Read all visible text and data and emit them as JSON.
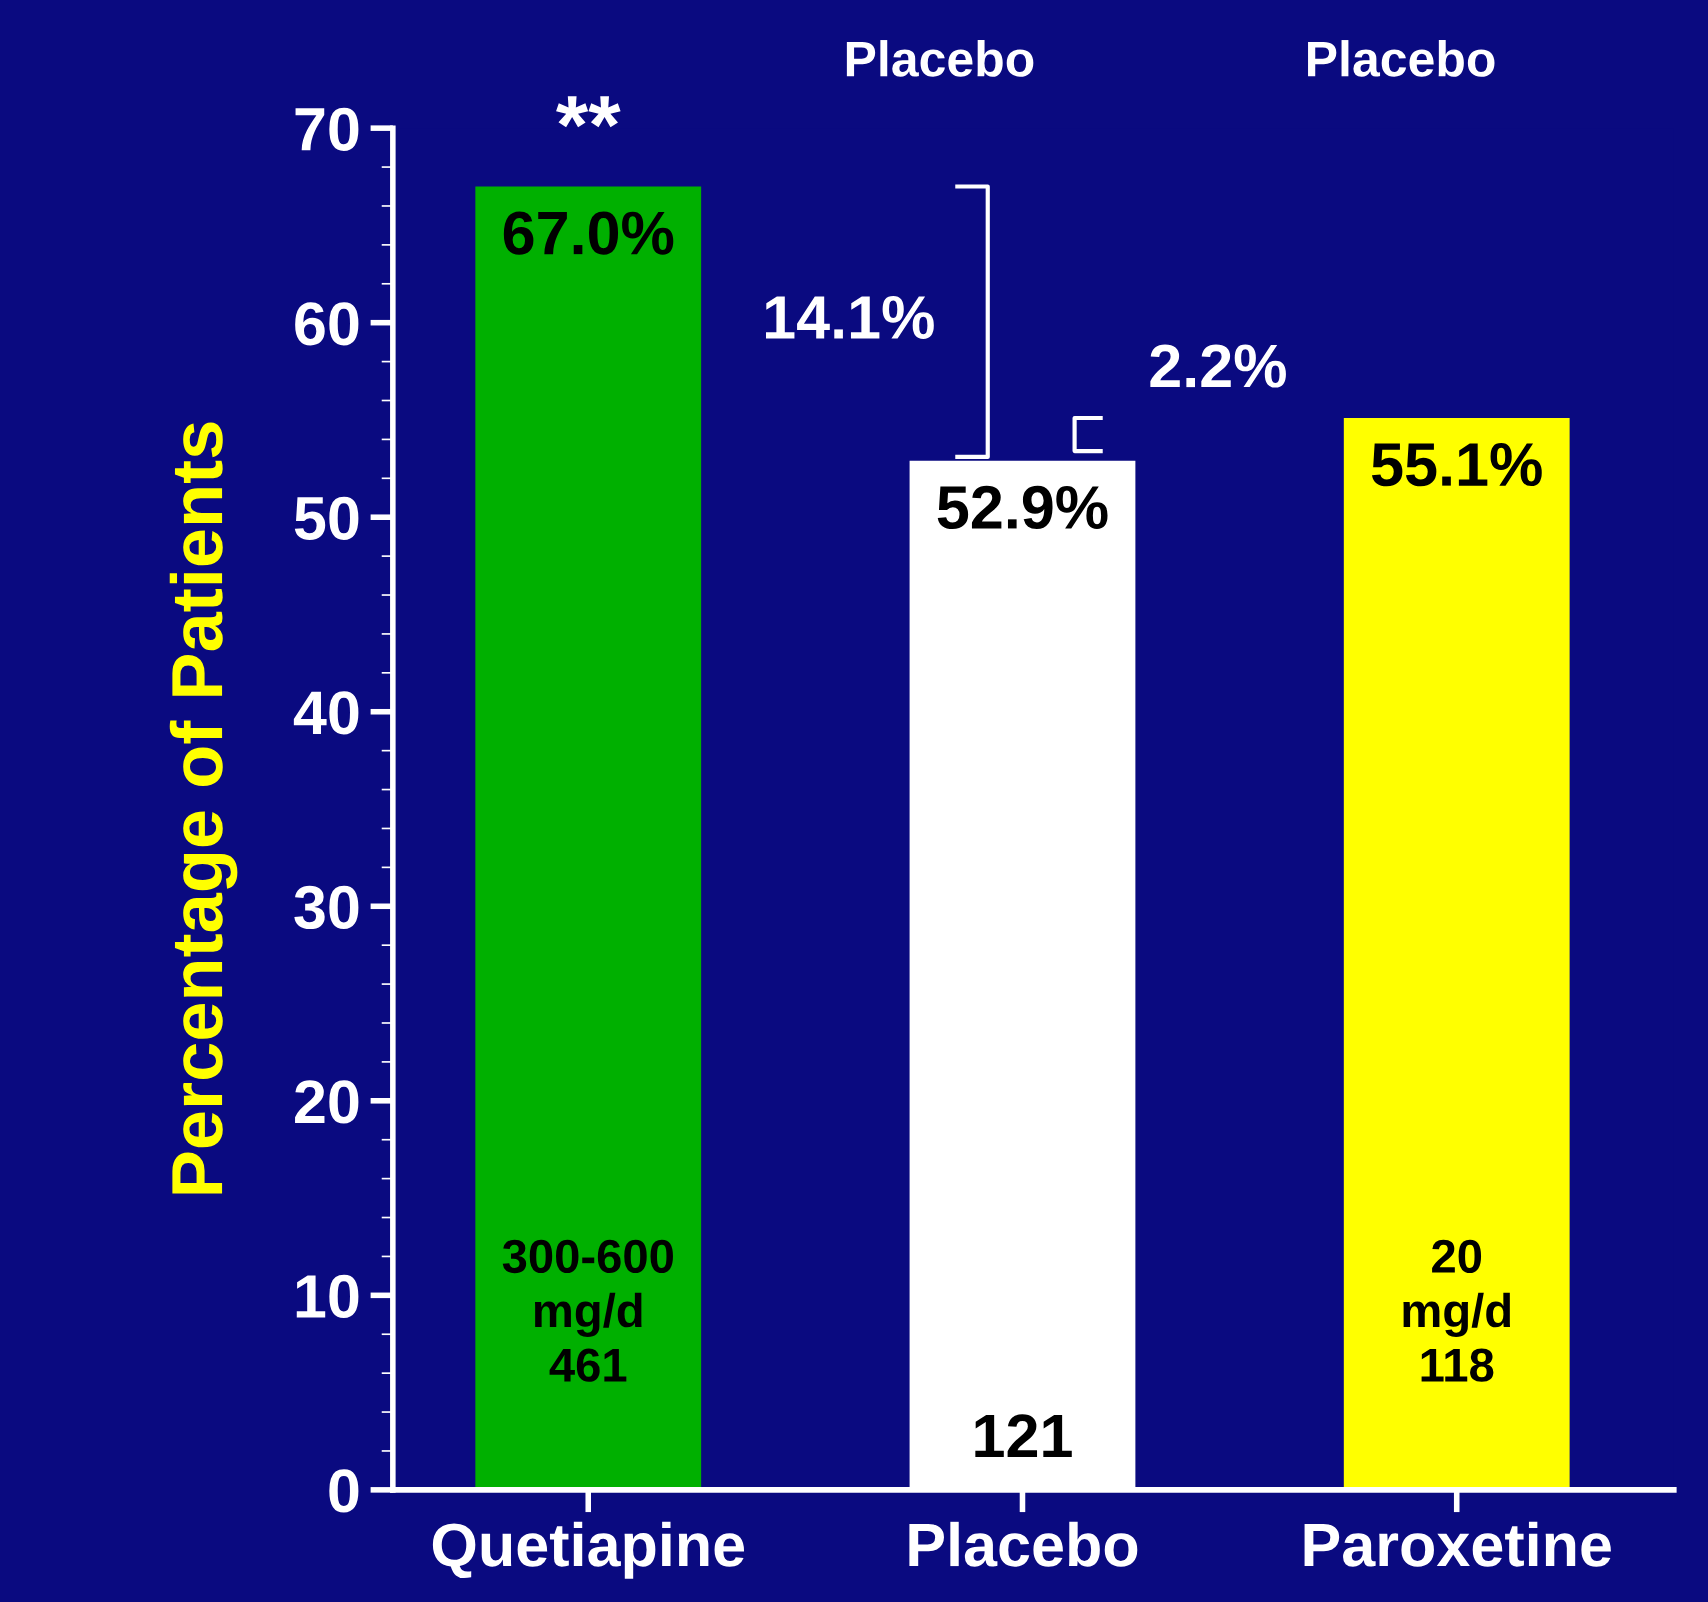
{
  "chart_data": {
    "type": "bar",
    "ylabel": "Percentage of Patients",
    "categories": [
      "Quetiapine",
      "Placebo",
      "Paroxetine"
    ],
    "values": [
      67.0,
      52.9,
      55.1
    ],
    "colors": [
      "#00b000",
      "#ffffff",
      "#ffff00"
    ],
    "value_labels": [
      "67.0%",
      "52.9%",
      "55.1%"
    ],
    "ylim": [
      0,
      70
    ],
    "yticks": [
      0,
      10,
      20,
      30,
      40,
      50,
      60,
      70
    ],
    "grid": false,
    "annotations": [
      "Placebo",
      "Placebo",
      "**",
      "14.1%",
      "2.2%",
      "300-600\nmg/d\n461",
      "121",
      "20\nmg/d\n118"
    ]
  }
}
